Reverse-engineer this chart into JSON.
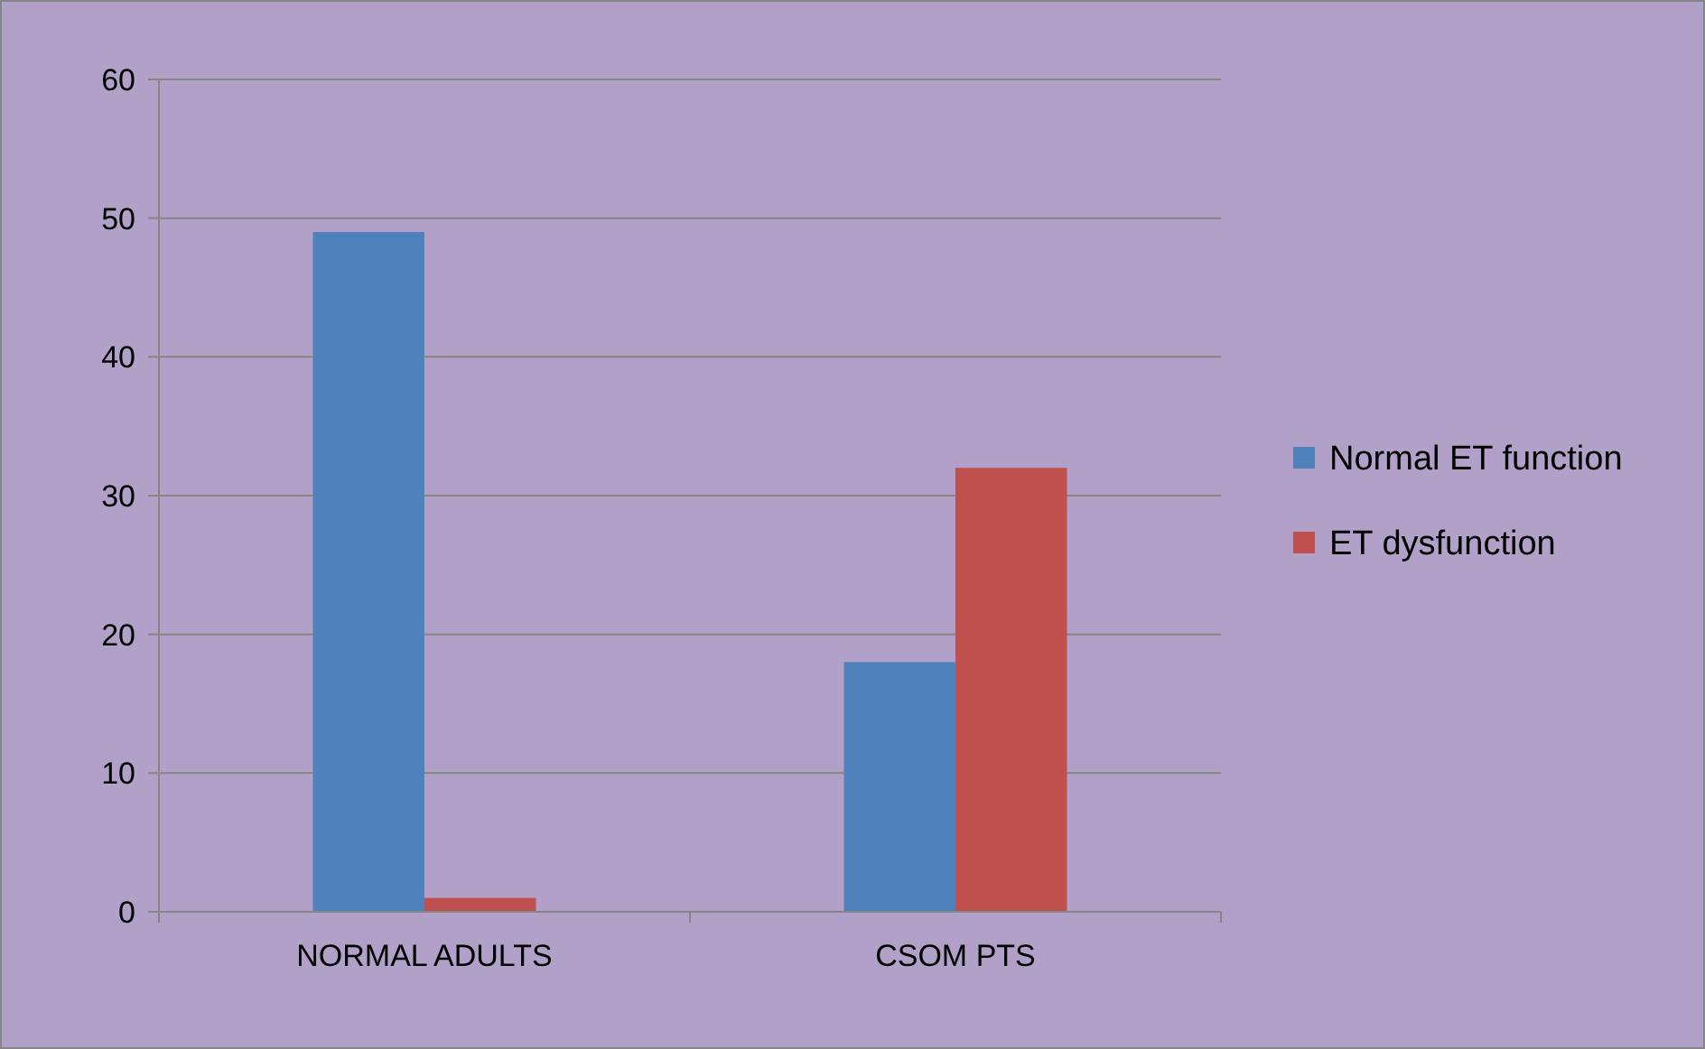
{
  "chart_data": {
    "type": "bar",
    "categories": [
      "NORMAL ADULTS",
      "CSOM PTS"
    ],
    "series": [
      {
        "name": "Normal ET function",
        "color": "#4f81bd",
        "values": [
          49,
          18
        ]
      },
      {
        "name": "ET dysfunction",
        "color": "#c0504d",
        "values": [
          1,
          32
        ]
      }
    ],
    "ylim": [
      0,
      60
    ],
    "yticks": [
      0,
      10,
      20,
      30,
      40,
      50,
      60
    ],
    "grid": "y",
    "legend": "right"
  }
}
